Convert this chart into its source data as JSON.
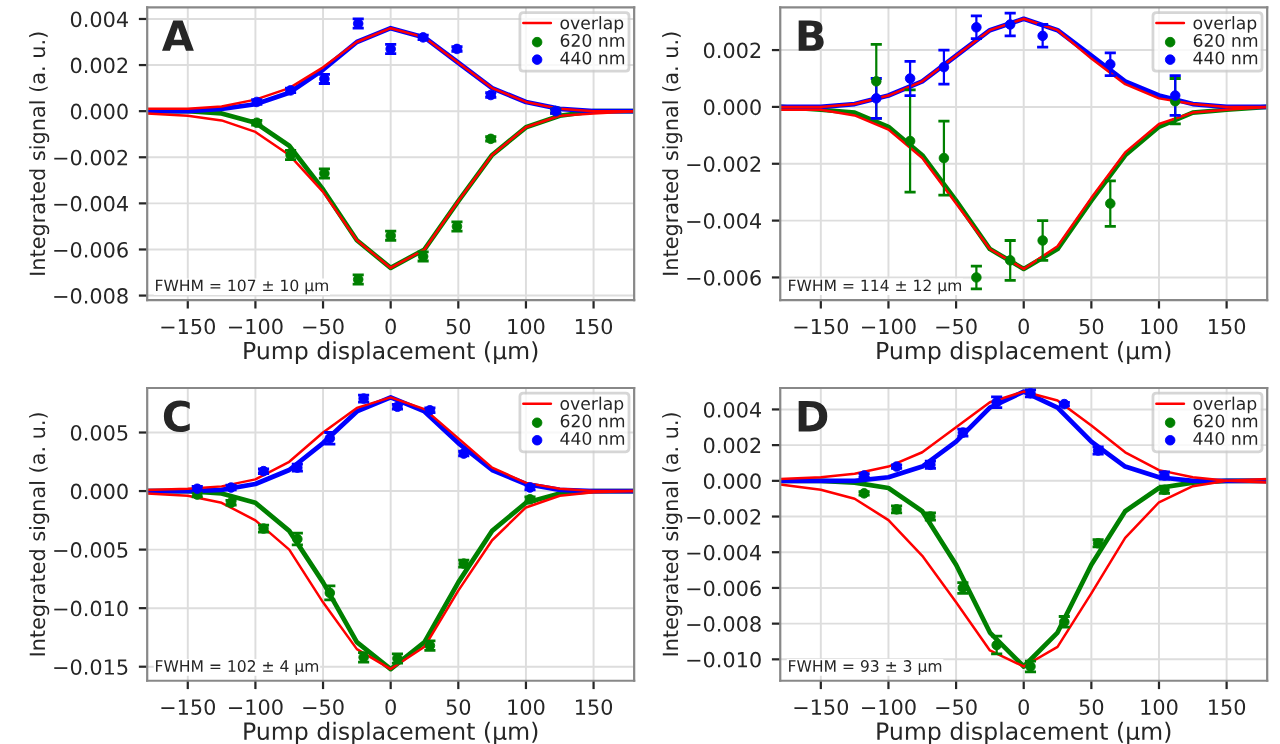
{
  "chart_data": [
    {
      "type": "scatter",
      "xlabel": "Pump displacement (µm)",
      "ylabel": "Integrated signal (a. u.)",
      "annotations": [
        "A",
        "FWHM = 107 ± 10 µm"
      ],
      "xlim": [
        -180,
        180
      ],
      "xticks": [
        {
          "value": -150,
          "label": "−150"
        },
        {
          "value": -100,
          "label": "−100"
        },
        {
          "value": -50,
          "label": "−50"
        },
        {
          "value": 0,
          "label": "0"
        },
        {
          "value": 50,
          "label": "50"
        },
        {
          "value": 100,
          "label": "100"
        },
        {
          "value": 150,
          "label": "150"
        }
      ],
      "ylim": [
        -0.0082,
        0.0045
      ],
      "yticks": [
        {
          "value": -0.008,
          "label": "−0.008"
        },
        {
          "value": -0.006,
          "label": "−0.006"
        },
        {
          "value": -0.004,
          "label": "−0.004"
        },
        {
          "value": -0.002,
          "label": "−0.002"
        },
        {
          "value": 0,
          "label": "0.000"
        },
        {
          "value": 0.002,
          "label": "0.002"
        },
        {
          "value": 0.004,
          "label": "0.004"
        }
      ],
      "grid": true,
      "legend": "top right",
      "series": [
        {
          "type": "line",
          "name": "overlap",
          "color": "#ff0000",
          "x": [
            -180,
            -150,
            -125,
            -100,
            -75,
            -50,
            -25,
            0,
            25,
            50,
            75,
            100,
            125,
            150,
            180
          ],
          "values": [
            0.0001,
            0.0001,
            0.0002,
            0.0005,
            0.001,
            0.0019,
            0.003,
            0.0036,
            0.0032,
            0.0021,
            0.001,
            0.0004,
            0.0001,
            0,
            0
          ]
        },
        {
          "type": "line",
          "color": "#ff0000",
          "x": [
            -180,
            -150,
            -125,
            -100,
            -75,
            -50,
            -25,
            0,
            25,
            50,
            75,
            100,
            125,
            150,
            180
          ],
          "values": [
            -0.0001,
            -0.0002,
            -0.0004,
            -0.0009,
            -0.0019,
            -0.0035,
            -0.0056,
            -0.0068,
            -0.006,
            -0.0039,
            -0.0019,
            -0.0007,
            -0.0002,
            -0.0001,
            0
          ]
        },
        {
          "type": "line",
          "color": "#008000",
          "x": [
            -180,
            -150,
            -125,
            -100,
            -75,
            -50,
            -25,
            0,
            25,
            50,
            75,
            100,
            125,
            150,
            180
          ],
          "values": [
            0,
            0,
            -0.0001,
            -0.0005,
            -0.0015,
            -0.0034,
            -0.0056,
            -0.0068,
            -0.006,
            -0.0039,
            -0.0019,
            -0.0007,
            -0.0002,
            0,
            0
          ]
        },
        {
          "type": "line",
          "color": "#0000ff",
          "x": [
            -180,
            -150,
            -125,
            -100,
            -75,
            -50,
            -25,
            0,
            25,
            50,
            75,
            100,
            125,
            150,
            180
          ],
          "values": [
            0,
            0,
            0.0001,
            0.0003,
            0.0008,
            0.0018,
            0.003,
            0.0036,
            0.0032,
            0.0021,
            0.001,
            0.0004,
            0.0001,
            0,
            0
          ]
        },
        {
          "name": "620 nm",
          "color": "#008000",
          "marker": "circle",
          "x": [
            -99,
            -74,
            -49,
            -24,
            0,
            24,
            49,
            74,
            122
          ],
          "values": [
            -0.0005,
            -0.0019,
            -0.0027,
            -0.0073,
            -0.0054,
            -0.0063,
            -0.005,
            -0.0012,
            0
          ],
          "errors": [
            0.0001,
            0.0002,
            0.0002,
            0.0002,
            0.0002,
            0.0002,
            0.0002,
            0.0001,
            0.0001
          ]
        },
        {
          "name": "440 nm",
          "color": "#0000ff",
          "marker": "circle",
          "x": [
            -99,
            -74,
            -49,
            -24,
            0,
            24,
            49,
            74,
            122
          ],
          "values": [
            0.0004,
            0.0009,
            0.0014,
            0.0038,
            0.0027,
            0.0032,
            0.0027,
            0.0007,
            0
          ],
          "errors": [
            0.0001,
            0.0001,
            0.0002,
            0.0002,
            0.0002,
            0.0001,
            0.0001,
            0.0001,
            0.0001
          ]
        }
      ]
    },
    {
      "type": "scatter",
      "xlabel": "Pump displacement (µm)",
      "ylabel": "Integrated signal (a. u.)",
      "annotations": [
        "B",
        "FWHM = 114 ± 12 µm"
      ],
      "xlim": [
        -180,
        180
      ],
      "xticks": [
        {
          "value": -150,
          "label": "−150"
        },
        {
          "value": -100,
          "label": "−100"
        },
        {
          "value": -50,
          "label": "−50"
        },
        {
          "value": 0,
          "label": "0"
        },
        {
          "value": 50,
          "label": "50"
        },
        {
          "value": 100,
          "label": "100"
        },
        {
          "value": 150,
          "label": "150"
        }
      ],
      "ylim": [
        -0.0068,
        0.0035
      ],
      "yticks": [
        {
          "value": -0.006,
          "label": "−0.006"
        },
        {
          "value": -0.004,
          "label": "−0.004"
        },
        {
          "value": -0.002,
          "label": "−0.002"
        },
        {
          "value": 0,
          "label": "0.000"
        },
        {
          "value": 0.002,
          "label": "0.002"
        }
      ],
      "grid": true,
      "legend": "top right",
      "series": [
        {
          "type": "line",
          "name": "overlap",
          "color": "#ff0000",
          "x": [
            -180,
            -150,
            -125,
            -100,
            -75,
            -50,
            -25,
            0,
            25,
            50,
            75,
            100,
            125,
            150,
            180
          ],
          "values": [
            0,
            0,
            0.0001,
            0.0004,
            0.0009,
            0.0018,
            0.0027,
            0.0031,
            0.0027,
            0.0017,
            0.0008,
            0.0003,
            0.0001,
            0,
            0
          ]
        },
        {
          "type": "line",
          "color": "#ff0000",
          "x": [
            -180,
            -150,
            -125,
            -100,
            -75,
            -50,
            -25,
            0,
            25,
            50,
            75,
            100,
            125,
            150,
            180
          ],
          "values": [
            -0.0001,
            -0.0001,
            -0.0003,
            -0.0008,
            -0.0018,
            -0.0034,
            -0.005,
            -0.0057,
            -0.0049,
            -0.0032,
            -0.0016,
            -0.0006,
            -0.0002,
            -0.0001,
            0
          ]
        },
        {
          "type": "line",
          "color": "#008000",
          "x": [
            -180,
            -150,
            -125,
            -100,
            -75,
            -50,
            -25,
            0,
            25,
            50,
            75,
            100,
            125,
            150,
            180
          ],
          "values": [
            0,
            -0.0001,
            -0.0002,
            -0.0007,
            -0.0017,
            -0.0033,
            -0.005,
            -0.0057,
            -0.005,
            -0.0033,
            -0.0017,
            -0.0007,
            -0.0002,
            -0.0001,
            0
          ]
        },
        {
          "type": "line",
          "color": "#0000ff",
          "x": [
            -180,
            -150,
            -125,
            -100,
            -75,
            -50,
            -25,
            0,
            25,
            50,
            75,
            100,
            125,
            150,
            180
          ],
          "values": [
            0,
            0,
            0.0001,
            0.0004,
            0.0009,
            0.0018,
            0.0027,
            0.0031,
            0.0027,
            0.0018,
            0.0009,
            0.0004,
            0.0001,
            0,
            0
          ]
        },
        {
          "name": "620 nm",
          "color": "#008000",
          "marker": "circle",
          "x": [
            -109,
            -84,
            -59,
            -35,
            -10,
            14,
            64,
            112
          ],
          "values": [
            0.0009,
            -0.0012,
            -0.0018,
            -0.006,
            -0.0054,
            -0.0047,
            -0.0034,
            0.0002
          ],
          "errors": [
            0.0013,
            0.0018,
            0.0013,
            0.0004,
            0.0007,
            0.0007,
            0.0008,
            0.0008
          ]
        },
        {
          "name": "440 nm",
          "color": "#0000ff",
          "marker": "circle",
          "x": [
            -109,
            -84,
            -59,
            -35,
            -10,
            14,
            64,
            112
          ],
          "values": [
            0.0003,
            0.001,
            0.0014,
            0.0028,
            0.0029,
            0.0025,
            0.0015,
            0.0004
          ],
          "errors": [
            0.0007,
            0.0006,
            0.0006,
            0.0004,
            0.0004,
            0.0004,
            0.0004,
            0.0007
          ]
        }
      ]
    },
    {
      "type": "scatter",
      "xlabel": "Pump displacement (µm)",
      "ylabel": "Integrated signal (a. u.)",
      "annotations": [
        "C",
        "FWHM = 102 ± 4 µm"
      ],
      "xlim": [
        -180,
        180
      ],
      "xticks": [
        {
          "value": -150,
          "label": "−150"
        },
        {
          "value": -100,
          "label": "−100"
        },
        {
          "value": -50,
          "label": "−50"
        },
        {
          "value": 0,
          "label": "0"
        },
        {
          "value": 50,
          "label": "50"
        },
        {
          "value": 100,
          "label": "100"
        },
        {
          "value": 150,
          "label": "150"
        }
      ],
      "ylim": [
        -0.0162,
        0.0088
      ],
      "yticks": [
        {
          "value": -0.015,
          "label": "−0.015"
        },
        {
          "value": -0.01,
          "label": "−0.010"
        },
        {
          "value": -0.005,
          "label": "−0.005"
        },
        {
          "value": 0,
          "label": "0.000"
        },
        {
          "value": 0.005,
          "label": "0.005"
        }
      ],
      "grid": true,
      "legend": "top right",
      "series": [
        {
          "type": "line",
          "name": "overlap",
          "color": "#ff0000",
          "x": [
            -180,
            -150,
            -125,
            -100,
            -75,
            -50,
            -25,
            0,
            25,
            50,
            75,
            100,
            125,
            150,
            180
          ],
          "values": [
            0.0001,
            0.0002,
            0.0004,
            0.001,
            0.0025,
            0.005,
            0.0071,
            0.008,
            0.007,
            0.0045,
            0.002,
            0.0007,
            0.0002,
            0,
            0
          ]
        },
        {
          "type": "line",
          "color": "#ff0000",
          "x": [
            -180,
            -150,
            -125,
            -100,
            -75,
            -50,
            -25,
            0,
            25,
            50,
            75,
            100,
            125,
            150,
            180
          ],
          "values": [
            -0.0002,
            -0.0004,
            -0.001,
            -0.0025,
            -0.005,
            -0.0095,
            -0.0135,
            -0.0152,
            -0.0133,
            -0.0085,
            -0.0042,
            -0.0014,
            -0.0004,
            -0.0001,
            0
          ]
        },
        {
          "type": "line",
          "color": "#008000",
          "x": [
            -180,
            -150,
            -125,
            -100,
            -75,
            -50,
            -25,
            0,
            25,
            50,
            75,
            100,
            125,
            150,
            180
          ],
          "values": [
            0,
            0,
            -0.0002,
            -0.001,
            -0.0034,
            -0.0078,
            -0.0129,
            -0.0152,
            -0.0129,
            -0.0078,
            -0.0034,
            -0.001,
            -0.0002,
            0,
            0
          ]
        },
        {
          "type": "line",
          "color": "#0000ff",
          "x": [
            -180,
            -150,
            -125,
            -100,
            -75,
            -50,
            -25,
            0,
            25,
            50,
            75,
            100,
            125,
            150,
            180
          ],
          "values": [
            0,
            0,
            0.0001,
            0.0006,
            0.0018,
            0.0041,
            0.0068,
            0.008,
            0.0068,
            0.0041,
            0.0018,
            0.0006,
            0.0001,
            0,
            0
          ]
        },
        {
          "name": "620 nm",
          "color": "#008000",
          "marker": "circle",
          "x": [
            -143,
            -118,
            -94,
            -69,
            -45,
            -20,
            5,
            29,
            54,
            103
          ],
          "values": [
            -0.0003,
            -0.001,
            -0.0032,
            -0.0041,
            -0.0087,
            -0.0142,
            -0.0143,
            -0.0132,
            -0.0062,
            -0.0007
          ],
          "errors": [
            0.0002,
            0.0002,
            0.0003,
            0.0005,
            0.0006,
            0.0004,
            0.0004,
            0.0004,
            0.0003,
            0.0002
          ]
        },
        {
          "name": "440 nm",
          "color": "#0000ff",
          "marker": "circle",
          "x": [
            -143,
            -118,
            -94,
            -69,
            -45,
            -20,
            5,
            29,
            54,
            103
          ],
          "values": [
            0.0002,
            0.0003,
            0.0017,
            0.002,
            0.0045,
            0.0079,
            0.0072,
            0.0069,
            0.0032,
            0.0003
          ],
          "errors": [
            0.0002,
            0.0002,
            0.0002,
            0.0003,
            0.0005,
            0.0003,
            0.0002,
            0.0002,
            0.0002,
            0.0002
          ]
        }
      ]
    },
    {
      "type": "scatter",
      "xlabel": "Pump displacement (µm)",
      "ylabel": "Integrated signal (a. u.)",
      "annotations": [
        "D",
        "FWHM = 93 ± 3 µm"
      ],
      "xlim": [
        -180,
        180
      ],
      "xticks": [
        {
          "value": -150,
          "label": "−150"
        },
        {
          "value": -100,
          "label": "−100"
        },
        {
          "value": -50,
          "label": "−50"
        },
        {
          "value": 0,
          "label": "0"
        },
        {
          "value": 50,
          "label": "50"
        },
        {
          "value": 100,
          "label": "100"
        },
        {
          "value": 150,
          "label": "150"
        }
      ],
      "ylim": [
        -0.0112,
        0.0052
      ],
      "yticks": [
        {
          "value": -0.01,
          "label": "−0.010"
        },
        {
          "value": -0.008,
          "label": "−0.008"
        },
        {
          "value": -0.006,
          "label": "−0.006"
        },
        {
          "value": -0.004,
          "label": "−0.004"
        },
        {
          "value": -0.002,
          "label": "−0.002"
        },
        {
          "value": 0,
          "label": "0.000"
        },
        {
          "value": 0.002,
          "label": "0.002"
        },
        {
          "value": 0.004,
          "label": "0.004"
        }
      ],
      "grid": true,
      "legend": "top right",
      "series": [
        {
          "type": "line",
          "name": "overlap",
          "color": "#ff0000",
          "x": [
            -180,
            -150,
            -125,
            -100,
            -75,
            -50,
            -25,
            0,
            25,
            50,
            75,
            100,
            125,
            150,
            180
          ],
          "values": [
            0.0001,
            0.0002,
            0.0004,
            0.0008,
            0.0016,
            0.003,
            0.0044,
            0.005,
            0.0045,
            0.0031,
            0.0016,
            0.0006,
            0.0002,
            0,
            -0.0001
          ]
        },
        {
          "type": "line",
          "color": "#ff0000",
          "x": [
            -180,
            -150,
            -125,
            -100,
            -75,
            -50,
            -25,
            0,
            25,
            50,
            75,
            100,
            125,
            150,
            180
          ],
          "values": [
            -0.0002,
            -0.0005,
            -0.001,
            -0.0022,
            -0.0042,
            -0.0068,
            -0.0095,
            -0.0104,
            -0.0093,
            -0.0063,
            -0.0032,
            -0.0012,
            -0.0003,
            0,
            0.0001
          ]
        },
        {
          "type": "line",
          "color": "#008000",
          "x": [
            -180,
            -150,
            -125,
            -100,
            -75,
            -50,
            -25,
            0,
            25,
            50,
            75,
            100,
            125,
            150,
            180
          ],
          "values": [
            0,
            0,
            -0.0001,
            -0.0004,
            -0.0017,
            -0.0047,
            -0.0085,
            -0.0104,
            -0.0085,
            -0.0047,
            -0.0017,
            -0.0004,
            -0.0001,
            0,
            0
          ]
        },
        {
          "type": "line",
          "color": "#0000ff",
          "x": [
            -180,
            -150,
            -125,
            -100,
            -75,
            -50,
            -25,
            0,
            25,
            50,
            75,
            100,
            125,
            150,
            180
          ],
          "values": [
            0,
            0,
            0,
            0.0002,
            0.0008,
            0.0022,
            0.0041,
            0.005,
            0.0041,
            0.0022,
            0.0008,
            0.0002,
            0,
            0,
            0
          ]
        },
        {
          "name": "620 nm",
          "color": "#008000",
          "marker": "circle",
          "x": [
            -118,
            -94,
            -69,
            -45,
            -20,
            5,
            30,
            55,
            104
          ],
          "values": [
            -0.0007,
            -0.0016,
            -0.002,
            -0.006,
            -0.0092,
            -0.0104,
            -0.0079,
            -0.0035,
            -0.0005
          ],
          "errors": [
            0.0001,
            0.0002,
            0.0002,
            0.0003,
            0.0005,
            0.0003,
            0.0003,
            0.0002,
            0.0002
          ]
        },
        {
          "name": "440 nm",
          "color": "#0000ff",
          "marker": "circle",
          "x": [
            -118,
            -94,
            -69,
            -45,
            -20,
            5,
            30,
            55,
            104
          ],
          "values": [
            0.0003,
            0.0008,
            0.0009,
            0.0027,
            0.0044,
            0.0049,
            0.0043,
            0.0017,
            0.0003
          ],
          "errors": [
            0.0001,
            0.0001,
            0.0002,
            0.0002,
            0.0003,
            0.0002,
            0.0001,
            0.0002,
            0.0002
          ]
        }
      ]
    }
  ]
}
